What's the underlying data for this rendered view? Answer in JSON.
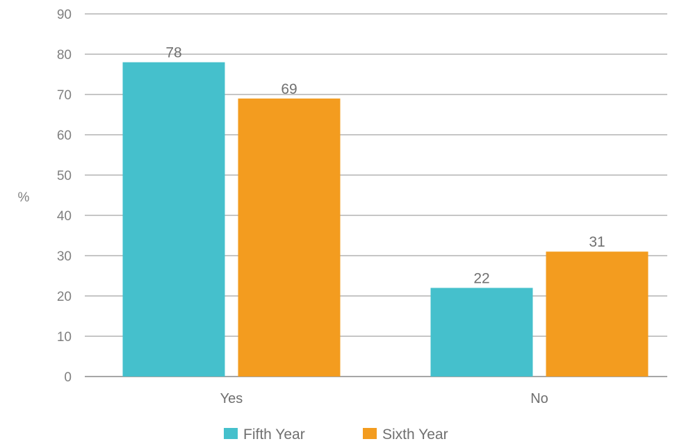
{
  "chart_data": {
    "type": "bar",
    "categories": [
      "Yes",
      "No"
    ],
    "series": [
      {
        "name": "Fifth Year",
        "values": [
          78,
          22
        ],
        "color": "#45c0cc"
      },
      {
        "name": "Sixth Year",
        "values": [
          69,
          31
        ],
        "color": "#f39c1f"
      }
    ],
    "ylabel": "%",
    "xlabel": "",
    "ylim": [
      0,
      90
    ],
    "yticks": [
      0,
      10,
      20,
      30,
      40,
      50,
      60,
      70,
      80,
      90
    ],
    "grid": true,
    "legend_position": "bottom",
    "data_labels": true
  }
}
